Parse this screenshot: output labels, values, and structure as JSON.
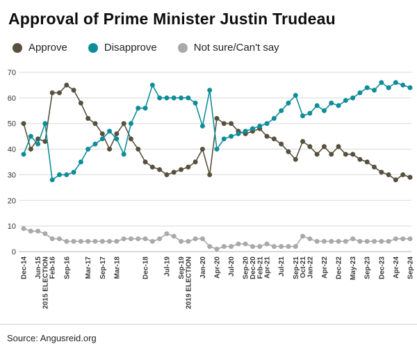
{
  "header": {
    "title": "Approval of Prime Minister Justin Trudeau"
  },
  "footer": {
    "source": "Source: Angusreid.org"
  },
  "chart_data": {
    "type": "line",
    "title": "Approval of Prime Minister Justin Trudeau",
    "ylim": [
      0,
      70
    ],
    "ytick_step": 10,
    "grid": true,
    "legend_position": "top",
    "marker": "circle",
    "x_labels": [
      "Dec-14",
      "",
      "Jun-15",
      "2015 ELECTION",
      "Feb-16",
      "",
      "Sep-16",
      "",
      "",
      "Mar-17",
      "",
      "Sep-17",
      "",
      "Mar-18",
      "",
      "",
      "",
      "Dec-18",
      "",
      "",
      "Jul-19",
      "",
      "Sep-19",
      "2019 ELECTION",
      "",
      "Jan-20",
      "",
      "Apr-20",
      "",
      "Jul-20",
      "",
      "Sep-20",
      "Dec-20",
      "Feb-21",
      "Apr-21",
      "",
      "Jul-21",
      "",
      "Sep-21",
      "Oct-21",
      "Jan-22",
      "",
      "Apr-22",
      "",
      "Dec-22",
      "",
      "May-23",
      "",
      "Sep-23",
      "",
      "Dec-23",
      "",
      "Apr-24",
      "",
      "Sep-24"
    ],
    "series": [
      {
        "name": "Approve",
        "color": "#57503d",
        "values": [
          50,
          40,
          44,
          43,
          62,
          62,
          65,
          63,
          58,
          52,
          50,
          46,
          40,
          46,
          50,
          44,
          40,
          35,
          33,
          32,
          30,
          31,
          32,
          33,
          35,
          40,
          30,
          52,
          50,
          50,
          47,
          46,
          47,
          48,
          45,
          44,
          42,
          39,
          36,
          43,
          41,
          38,
          41,
          38,
          41,
          38,
          38,
          36,
          35,
          33,
          31,
          30,
          28,
          30,
          29
        ]
      },
      {
        "name": "Disapprove",
        "color": "#0e8d99",
        "values": [
          38,
          45,
          42,
          50,
          28,
          30,
          30,
          31,
          35,
          40,
          42,
          44,
          47,
          44,
          38,
          50,
          56,
          56,
          65,
          60,
          60,
          60,
          60,
          60,
          58,
          49,
          63,
          40,
          44,
          45,
          46,
          47,
          48,
          49,
          50,
          52,
          55,
          58,
          61,
          53,
          54,
          57,
          55,
          58,
          57,
          59,
          60,
          62,
          64,
          63,
          66,
          64,
          66,
          65,
          64
        ]
      },
      {
        "name": "Not sure/Can't say",
        "color": "#a9a9a9",
        "values": [
          9,
          8,
          8,
          7,
          5,
          5,
          4,
          4,
          4,
          4,
          4,
          4,
          4,
          4,
          5,
          5,
          5,
          5,
          4,
          5,
          7,
          6,
          4,
          4,
          5,
          5,
          2,
          1,
          2,
          2,
          3,
          3,
          2,
          2,
          3,
          2,
          2,
          2,
          2,
          6,
          5,
          4,
          4,
          4,
          4,
          4,
          5,
          4,
          4,
          4,
          4,
          4,
          5,
          5,
          5
        ]
      }
    ],
    "axis_colors": {
      "gridline": "#d8d8d8",
      "baseline": "#b5b5b5",
      "tick_text": "#333333",
      "x_label_text": "#3a3a3a"
    }
  }
}
